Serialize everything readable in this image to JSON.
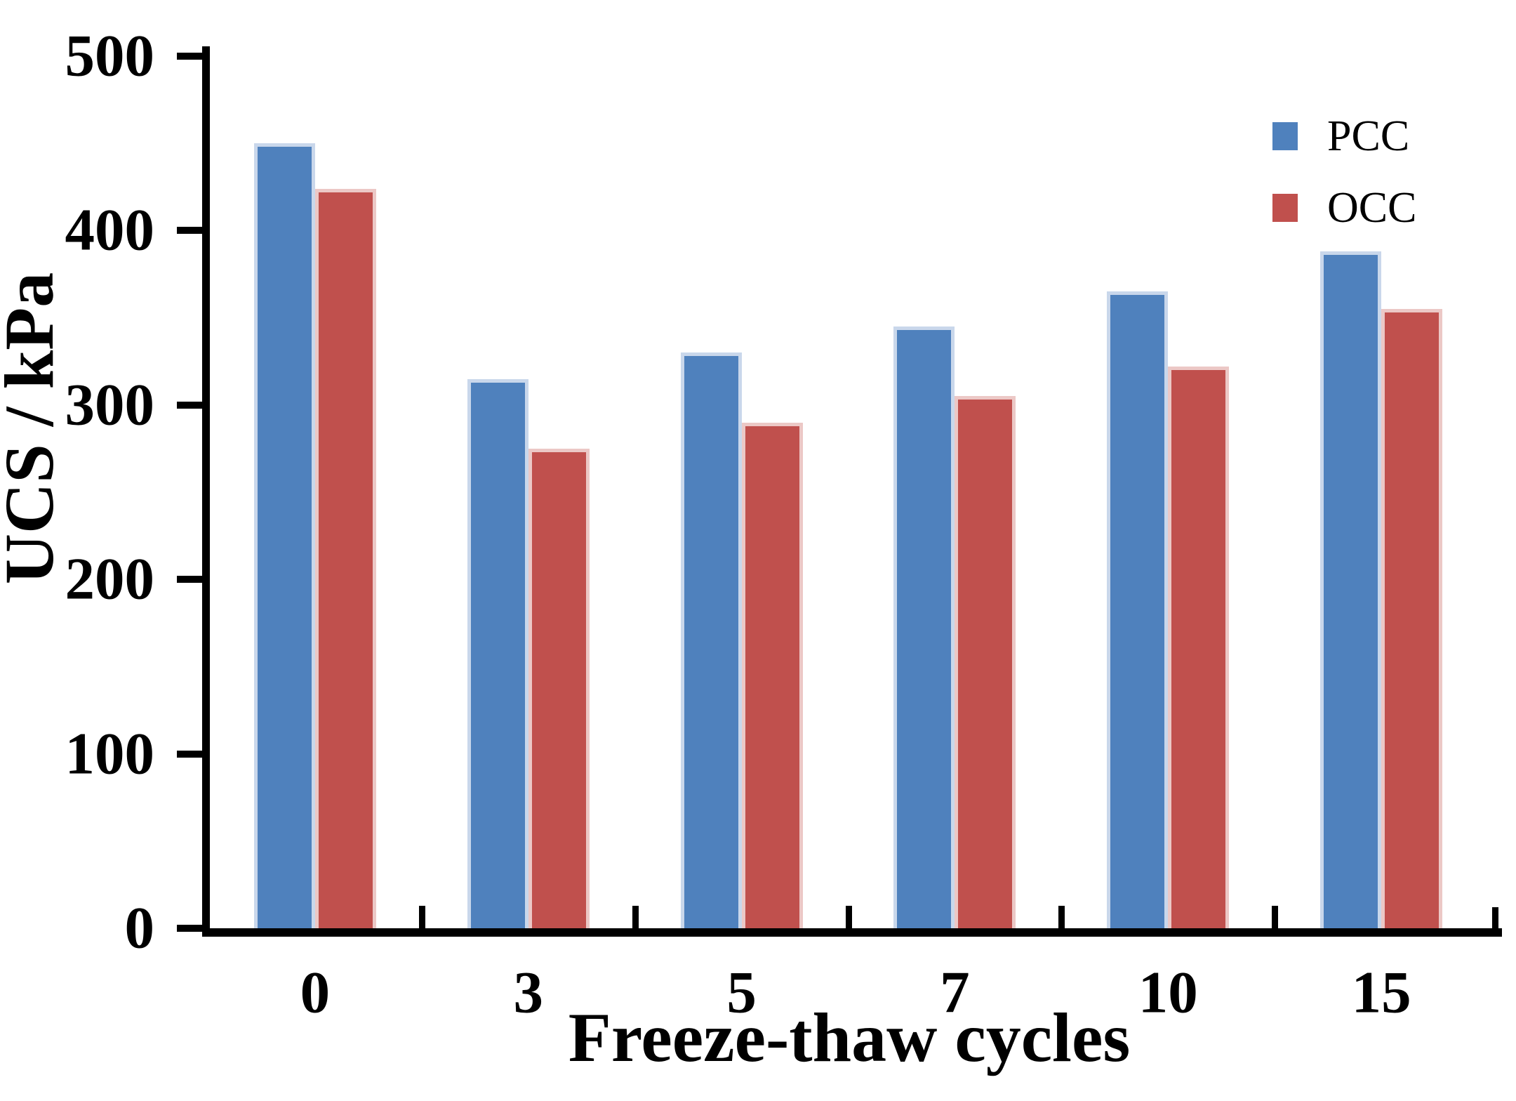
{
  "chart_data": {
    "type": "bar",
    "title": "",
    "xlabel": "Freeze-thaw cycles",
    "ylabel": "UCS / kPa",
    "categories": [
      "0",
      "3",
      "5",
      "7",
      "10",
      "15"
    ],
    "series": [
      {
        "name": "PCC",
        "color": "#4F81BD",
        "edge_color": "#C9D7EB",
        "values": [
          450,
          315,
          330,
          345,
          365,
          388
        ]
      },
      {
        "name": "OCC",
        "color": "#C0504D",
        "edge_color": "#ECC8C6",
        "values": [
          424,
          275,
          290,
          305,
          322,
          355
        ]
      }
    ],
    "ylim": [
      0,
      500
    ],
    "yticks": [
      0,
      100,
      200,
      300,
      400,
      500
    ],
    "legend_position": "top-right",
    "grid": false,
    "axis_color": "#000000"
  }
}
